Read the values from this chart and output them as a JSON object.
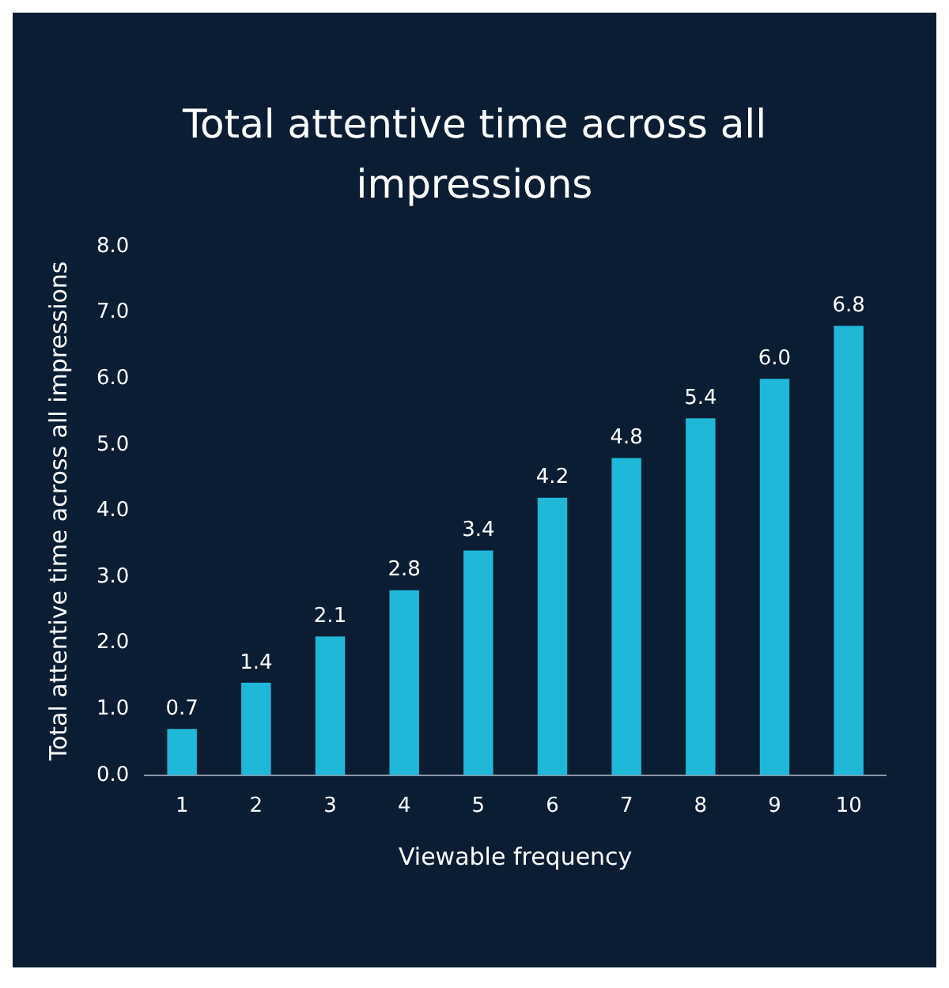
{
  "chart_data": {
    "type": "bar",
    "title": "Total attentive time across all impressions",
    "xlabel": "Viewable frequency",
    "ylabel": "Total attentive time across all impressions",
    "categories": [
      "1",
      "2",
      "3",
      "4",
      "5",
      "6",
      "7",
      "8",
      "9",
      "10"
    ],
    "values": [
      0.7,
      1.4,
      2.1,
      2.8,
      3.4,
      4.2,
      4.8,
      5.4,
      6.0,
      6.8
    ],
    "value_labels": [
      "0.7",
      "1.4",
      "2.1",
      "2.8",
      "3.4",
      "4.2",
      "4.8",
      "5.4",
      "6.0",
      "6.8"
    ],
    "color": "#1fb8d9",
    "grid": false,
    "legend": false,
    "ylim": [
      0,
      8
    ],
    "yticks": [
      {
        "value": 0,
        "label": "0.0"
      },
      {
        "value": 1,
        "label": "1.0"
      },
      {
        "value": 2,
        "label": "2.0"
      },
      {
        "value": 3,
        "label": "3.0"
      },
      {
        "value": 4,
        "label": "4.0"
      },
      {
        "value": 5,
        "label": "5.0"
      },
      {
        "value": 6,
        "label": "6.0"
      },
      {
        "value": 7,
        "label": "7.0"
      },
      {
        "value": 8,
        "label": "8.0"
      }
    ]
  }
}
